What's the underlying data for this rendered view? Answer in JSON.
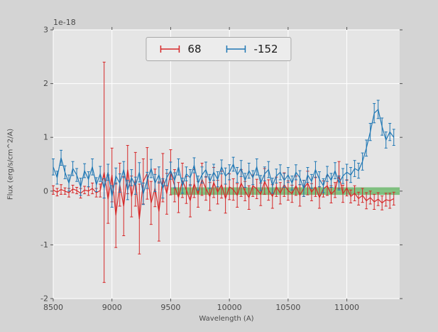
{
  "figure": {
    "bg": "#d4d4d4",
    "axes_bg": "#e5e5e5",
    "grid_color": "#ffffff",
    "tick_color": "#555555",
    "label_color": "#4a4a4a"
  },
  "chart_data": {
    "type": "line",
    "title": "",
    "xlabel": "Wavelength (A)",
    "ylabel": "Flux (erg/s/cm^2/A)",
    "offset_text": "1e-18",
    "xlim": [
      8500,
      11450
    ],
    "ylim": [
      -2,
      3
    ],
    "xticks": [
      8500,
      9000,
      9500,
      10000,
      10500,
      11000
    ],
    "yticks": [
      -2,
      -1,
      0,
      1,
      2,
      3
    ],
    "grid": true,
    "x_start": 8500,
    "x_step": 33.333,
    "n_points": 88,
    "legend": {
      "position": "upper center",
      "entries": [
        "68",
        "-152"
      ]
    },
    "band": {
      "x0": 9500,
      "x1": 11450,
      "y0": -0.07,
      "y1": 0.07,
      "color": "#2ca02c",
      "opacity": 0.55
    },
    "series": [
      {
        "name": "68",
        "color": "#d62728",
        "y": [
          0.02,
          -0.02,
          0.03,
          0.0,
          -0.03,
          0.04,
          0.01,
          -0.04,
          0.02,
          0.0,
          0.05,
          -0.03,
          0.01,
          0.35,
          -0.15,
          0.3,
          -0.45,
          0.12,
          -0.28,
          0.4,
          -0.1,
          0.22,
          -0.52,
          0.18,
          0.33,
          -0.22,
          0.06,
          -0.38,
          0.25,
          -0.05,
          0.35,
          0.1,
          -0.12,
          0.2,
          0.02,
          -0.18,
          0.14,
          -0.06,
          0.22,
          0.05,
          -0.1,
          0.16,
          -0.02,
          0.12,
          -0.14,
          0.08,
          0.03,
          -0.08,
          0.15,
          0.0,
          -0.12,
          0.1,
          0.04,
          -0.06,
          0.18,
          0.02,
          -0.1,
          0.08,
          -0.04,
          0.12,
          0.01,
          -0.05,
          0.1,
          -0.08,
          0.05,
          0.15,
          -0.02,
          0.08,
          -0.12,
          0.04,
          0.1,
          -0.06,
          0.02,
          0.3,
          -0.05,
          0.06,
          -0.1,
          -0.04,
          -0.14,
          -0.08,
          -0.18,
          -0.12,
          -0.2,
          -0.15,
          -0.22,
          -0.16,
          -0.18,
          -0.14
        ],
        "yerr": [
          0.08,
          0.07,
          0.09,
          0.06,
          0.08,
          0.07,
          0.06,
          0.09,
          0.07,
          0.08,
          0.1,
          0.08,
          0.12,
          2.05,
          0.45,
          0.5,
          0.6,
          0.4,
          0.55,
          0.45,
          0.38,
          0.5,
          0.65,
          0.42,
          0.48,
          0.4,
          0.35,
          0.55,
          0.45,
          0.38,
          0.42,
          0.3,
          0.28,
          0.32,
          0.25,
          0.3,
          0.26,
          0.24,
          0.3,
          0.22,
          0.26,
          0.28,
          0.22,
          0.25,
          0.27,
          0.24,
          0.2,
          0.22,
          0.25,
          0.18,
          0.22,
          0.2,
          0.18,
          0.21,
          0.24,
          0.19,
          0.22,
          0.18,
          0.2,
          0.22,
          0.18,
          0.16,
          0.18,
          0.2,
          0.15,
          0.22,
          0.16,
          0.18,
          0.2,
          0.15,
          0.18,
          0.16,
          0.14,
          0.25,
          0.16,
          0.15,
          0.12,
          0.14,
          0.12,
          0.13,
          0.15,
          0.12,
          0.14,
          0.12,
          0.13,
          0.12,
          0.14,
          0.12
        ]
      },
      {
        "name": "-152",
        "color": "#1f77b4",
        "y": [
          0.45,
          0.25,
          0.62,
          0.35,
          0.15,
          0.42,
          0.3,
          0.08,
          0.38,
          0.22,
          0.45,
          0.12,
          0.32,
          0.05,
          0.35,
          -0.1,
          0.28,
          0.15,
          0.4,
          0.02,
          0.25,
          0.1,
          0.35,
          -0.05,
          0.2,
          0.42,
          0.15,
          0.3,
          0.05,
          0.25,
          0.38,
          0.2,
          0.45,
          0.1,
          0.32,
          0.25,
          0.48,
          0.15,
          0.3,
          0.4,
          0.18,
          0.35,
          0.22,
          0.45,
          0.28,
          0.35,
          0.5,
          0.3,
          0.42,
          0.2,
          0.38,
          0.25,
          0.45,
          0.15,
          0.32,
          0.4,
          0.1,
          0.28,
          0.35,
          0.2,
          0.3,
          0.15,
          0.35,
          0.25,
          0.05,
          0.3,
          0.18,
          0.4,
          0.22,
          0.1,
          0.32,
          0.2,
          0.38,
          0.15,
          0.28,
          0.35,
          0.3,
          0.42,
          0.38,
          0.55,
          0.8,
          1.1,
          1.45,
          1.52,
          1.2,
          0.95,
          1.1,
          1.0
        ],
        "yerr": [
          0.15,
          0.12,
          0.14,
          0.12,
          0.15,
          0.13,
          0.12,
          0.16,
          0.13,
          0.14,
          0.15,
          0.13,
          0.14,
          0.18,
          0.15,
          0.2,
          0.15,
          0.17,
          0.15,
          0.18,
          0.15,
          0.16,
          0.18,
          0.2,
          0.15,
          0.17,
          0.16,
          0.15,
          0.18,
          0.15,
          0.16,
          0.14,
          0.15,
          0.14,
          0.13,
          0.15,
          0.14,
          0.13,
          0.15,
          0.14,
          0.13,
          0.15,
          0.14,
          0.13,
          0.15,
          0.14,
          0.13,
          0.14,
          0.15,
          0.13,
          0.14,
          0.13,
          0.15,
          0.14,
          0.13,
          0.15,
          0.14,
          0.13,
          0.14,
          0.13,
          0.14,
          0.13,
          0.14,
          0.13,
          0.15,
          0.14,
          0.13,
          0.15,
          0.14,
          0.13,
          0.14,
          0.13,
          0.15,
          0.13,
          0.14,
          0.15,
          0.14,
          0.15,
          0.14,
          0.16,
          0.15,
          0.16,
          0.18,
          0.17,
          0.16,
          0.15,
          0.16,
          0.15
        ]
      }
    ]
  }
}
